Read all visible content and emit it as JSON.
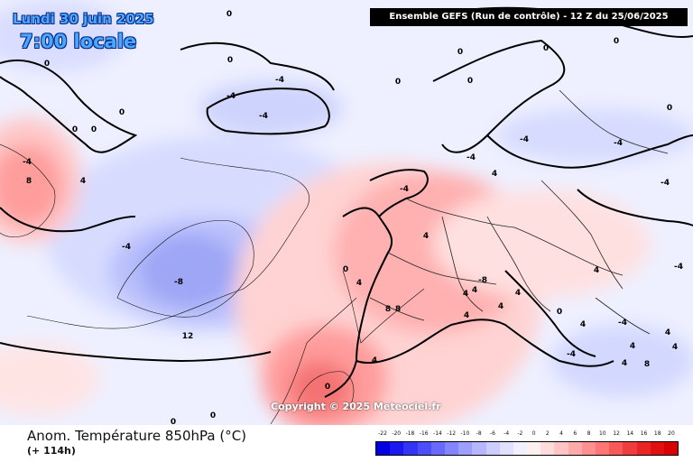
{
  "header": {
    "date": "Lundi 30 juin 2025",
    "time": "7:00 locale",
    "run_info": "Ensemble GEFS  (Run de contrôle)  -  12 Z du 25/06/2025"
  },
  "map": {
    "copyright": "Copyright © 2025 Meteociel.fr",
    "contour_labels": [
      "0",
      "0",
      "0",
      "0",
      "0",
      "0",
      "0",
      "0",
      "0",
      "0",
      "0",
      "0",
      "0",
      "-4",
      "-4",
      "-4",
      "-4",
      "-4",
      "-4",
      "-4",
      "-4",
      "-4",
      "-4",
      "4",
      "4",
      "4",
      "4",
      "4",
      "4",
      "4",
      "4",
      "4",
      "4",
      "4",
      "8",
      "8",
      "8",
      "8",
      "-8",
      "-8",
      "12",
      "0",
      "0",
      "0",
      "0",
      "4",
      "4",
      "4",
      "4",
      "4",
      "-4",
      "-4",
      "-4"
    ]
  },
  "footer": {
    "parameter": "Anom. Température 850hPa (°C)",
    "lead_time": "(+ 114h)"
  },
  "colorbar": {
    "ticks": [
      "-22",
      "-20",
      "-18",
      "-16",
      "-14",
      "-12",
      "-10",
      "-8",
      "-6",
      "-4",
      "-2",
      "0",
      "2",
      "4",
      "6",
      "8",
      "10",
      "12",
      "14",
      "16",
      "18",
      "20"
    ],
    "colors": [
      "#0000e0",
      "#1a1af0",
      "#3434f5",
      "#4e4ef8",
      "#6a6afa",
      "#8484fb",
      "#9e9efc",
      "#b6b6fd",
      "#ccccfe",
      "#e0e0ff",
      "#f0f0ff",
      "#fff0f0",
      "#ffdcdc",
      "#ffc4c4",
      "#ffaaaa",
      "#ff9090",
      "#ff7676",
      "#f85a5a",
      "#f03e3e",
      "#e82424",
      "#e01010",
      "#d80000"
    ]
  }
}
